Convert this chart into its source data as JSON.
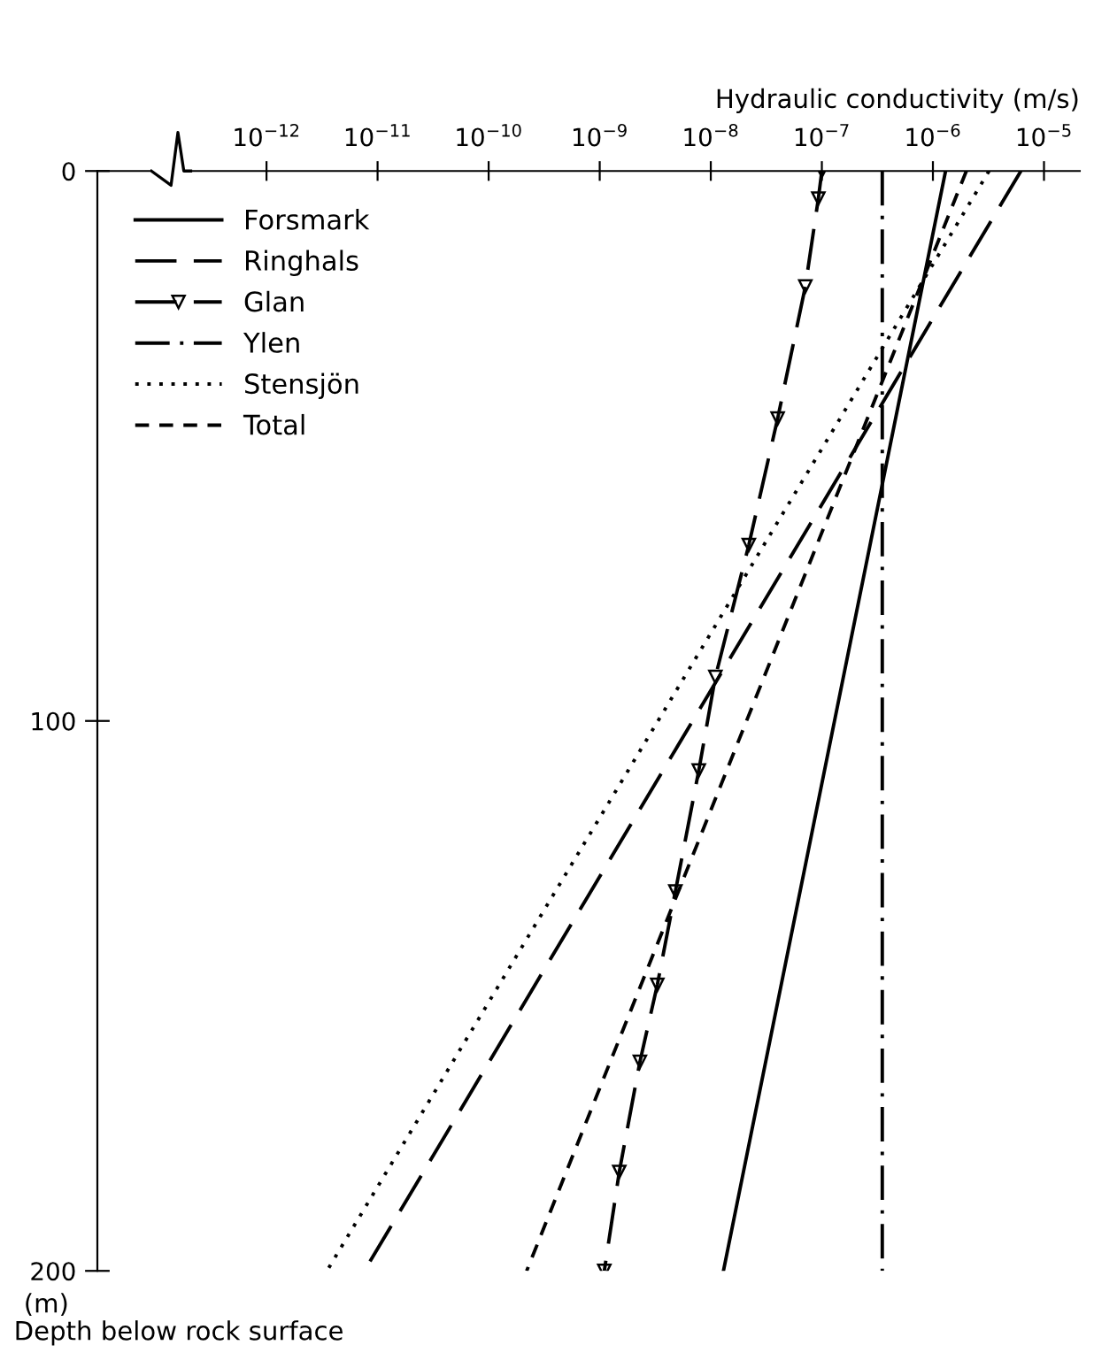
{
  "chart_data": {
    "type": "line",
    "xlabel": "Hydraulic conductivity (m/s)",
    "ylabel": "Depth below rock surface",
    "annotations": [
      "(m)"
    ],
    "log": "x",
    "xlim": [
      3e-14,
      2.1e-05
    ],
    "xticks": [
      {
        "value": 1e-12,
        "label": "10$^{−12}$"
      },
      {
        "value": 1e-11,
        "label": "10$^{−11}$"
      },
      {
        "value": 1e-10,
        "label": "10$^{−10}$"
      },
      {
        "value": 1e-09,
        "label": "10$^{−9}$"
      },
      {
        "value": 1e-08,
        "label": "10$^{−8}$"
      },
      {
        "value": 1e-07,
        "label": "10$^{−7}$"
      },
      {
        "value": 1e-06,
        "label": "10$^{−6}$"
      },
      {
        "value": 1e-05,
        "label": "10$^{−5}$"
      }
    ],
    "ylim": [
      200,
      0
    ],
    "yticks": [
      0,
      100,
      200
    ],
    "grid": false,
    "legend": "top left",
    "series": [
      {
        "name": "Forsmark",
        "color": "#000000",
        "line_style": "solid",
        "x": [
          1.3e-06,
          1.3e-08
        ],
        "values": [
          0,
          200
        ]
      },
      {
        "name": "Ringhals",
        "color": "#000000",
        "line_style": "longdash",
        "x": [
          6.2e-06,
          7.6e-12
        ],
        "values": [
          0,
          200
        ]
      },
      {
        "name": "Glan",
        "color": "#000000",
        "line_style": "longdash",
        "marker": "triangle",
        "x": [
          1e-07,
          9.3e-08,
          7.1e-08,
          4e-08,
          2.2e-08,
          1.1e-08,
          7.8e-09,
          4.8e-09,
          3.3e-09,
          2.3e-09,
          1.5e-09,
          1.1e-09
        ],
        "values": [
          0,
          5,
          21,
          45,
          68,
          92,
          109,
          131,
          148,
          162,
          182,
          200
        ]
      },
      {
        "name": "Ylen",
        "color": "#000000",
        "line_style": "dashdot",
        "x": [
          3.5e-07,
          3.5e-07
        ],
        "values": [
          0,
          200
        ]
      },
      {
        "name": "Stensjön",
        "color": "#000000",
        "line_style": "dotted",
        "x": [
          3.2e-06,
          3.5e-12
        ],
        "values": [
          0,
          200
        ]
      },
      {
        "name": "Total",
        "color": "#000000",
        "line_style": "dashed",
        "x": [
          2e-06,
          2.2e-10
        ],
        "values": [
          0,
          200
        ]
      }
    ]
  }
}
